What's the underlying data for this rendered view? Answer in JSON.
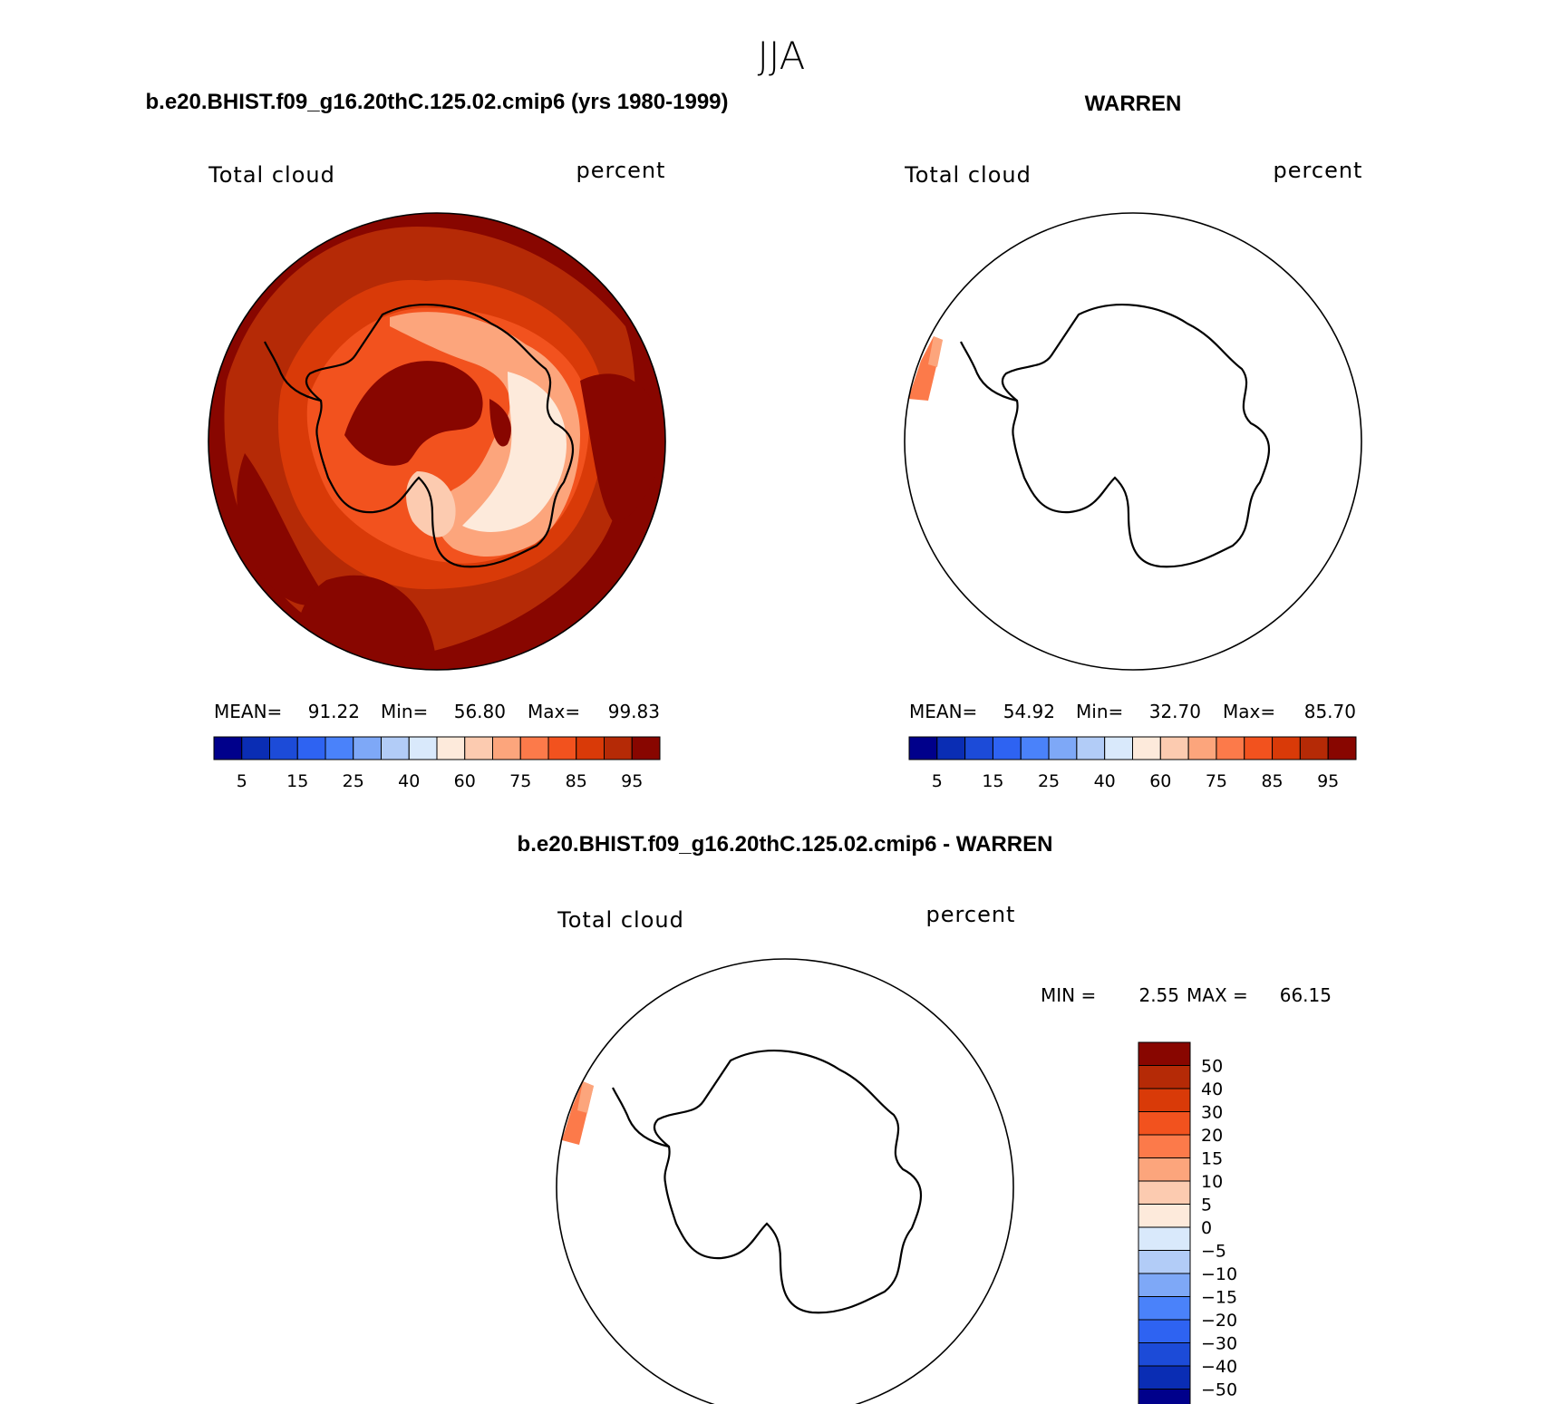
{
  "season": "JJA",
  "colormap_abs": [
    "#00008b",
    "#0a2db4",
    "#1c4bd8",
    "#2e63f2",
    "#4a82fa",
    "#7ea8f7",
    "#b2ccf7",
    "#d9e9fb",
    "#fdeadb",
    "#fccbb0",
    "#fca57c",
    "#fc7a4a",
    "#f2521e",
    "#d93a08",
    "#b52a06",
    "#880600"
  ],
  "colormap_diff": [
    "#880600",
    "#b52a06",
    "#d93a08",
    "#f2521e",
    "#fc7a4a",
    "#fca57c",
    "#fccbb0",
    "#fdeadb",
    "#d9e9fb",
    "#b2ccf7",
    "#7ea8f7",
    "#4a82fa",
    "#2e63f2",
    "#1c4bd8",
    "#0a2db4",
    "#00008b"
  ],
  "panels": [
    {
      "title": "b.e20.BHIST.f09_g16.20thC.125.02.cmip6 (yrs 1980-1999)",
      "left_label": "Total cloud",
      "right_label": "percent",
      "stats": {
        "mean_label": "MEAN=",
        "mean": "91.22",
        "min_label": "Min=",
        "min": "56.80",
        "max_label": "Max=",
        "max": "99.83"
      },
      "colorbar_ticks": [
        "5",
        "15",
        "25",
        "40",
        "60",
        "75",
        "85",
        "95"
      ]
    },
    {
      "title": "WARREN",
      "left_label": "Total cloud",
      "right_label": "percent",
      "stats": {
        "mean_label": "MEAN=",
        "mean": "54.92",
        "min_label": "Min=",
        "min": "32.70",
        "max_label": "Max=",
        "max": "85.70"
      },
      "colorbar_ticks": [
        "5",
        "15",
        "25",
        "40",
        "60",
        "75",
        "85",
        "95"
      ]
    },
    {
      "title": "b.e20.BHIST.f09_g16.20thC.125.02.cmip6 - WARREN",
      "left_label": "Total cloud",
      "right_label": "percent",
      "minmax": {
        "min_label": "MIN =",
        "min": "2.55",
        "max_label": "MAX =",
        "max": "66.15"
      },
      "colorbar_ticks": [
        "50",
        "40",
        "30",
        "20",
        "15",
        "10",
        "5",
        "0",
        "−5",
        "−10",
        "−15",
        "−20",
        "−30",
        "−40",
        "−50"
      ]
    }
  ]
}
